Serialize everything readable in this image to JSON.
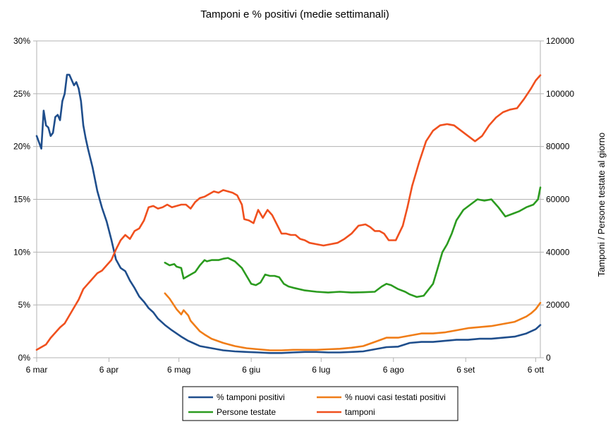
{
  "chart_data": {
    "type": "line",
    "title": "Tamponi e % positivi (medie settimanali)",
    "xlabel": "",
    "ylabel_left": "",
    "ylabel_right": "Tamponi / Persone testate al giorno",
    "x_ticks": [
      "6 mar",
      "6 apr",
      "6 mag",
      "6 giu",
      "6 lug",
      "6 ago",
      "6 set",
      "6 ott"
    ],
    "x_range_days": [
      0,
      216
    ],
    "y_left": {
      "range": [
        0,
        30
      ],
      "ticks": [
        "0%",
        "5%",
        "10%",
        "15%",
        "20%",
        "25%",
        "30%"
      ]
    },
    "y_right": {
      "range": [
        0,
        120000
      ],
      "ticks": [
        "0",
        "20000",
        "40000",
        "60000",
        "80000",
        "100000",
        "120000"
      ]
    },
    "grid": true,
    "legend": "bottom",
    "series": [
      {
        "name": "% tamponi positivi",
        "axis": "left",
        "color": "#1f4e8c",
        "x": [
          0,
          2,
          3,
          4,
          5,
          6,
          7,
          8,
          9,
          10,
          11,
          12,
          13,
          14,
          15,
          16,
          17,
          18,
          19,
          20,
          21,
          22,
          24,
          26,
          28,
          30,
          32,
          34,
          36,
          38,
          40,
          42,
          44,
          46,
          48,
          50,
          52,
          55,
          58,
          60,
          62,
          65,
          68,
          70,
          75,
          80,
          85,
          90,
          95,
          100,
          105,
          110,
          115,
          120,
          125,
          130,
          135,
          140,
          145,
          150,
          155,
          160,
          165,
          170,
          175,
          180,
          185,
          190,
          195,
          200,
          205,
          210,
          214,
          216
        ],
        "y": [
          21.0,
          19.8,
          23.4,
          22.0,
          21.8,
          21.0,
          21.3,
          22.8,
          23.0,
          22.5,
          24.3,
          25.0,
          26.8,
          26.8,
          26.3,
          25.8,
          26.1,
          25.5,
          24.3,
          22.0,
          20.8,
          19.8,
          18.0,
          15.8,
          14.2,
          12.9,
          11.2,
          9.3,
          8.5,
          8.2,
          7.3,
          6.6,
          5.8,
          5.3,
          4.7,
          4.3,
          3.7,
          3.1,
          2.6,
          2.3,
          2.0,
          1.6,
          1.3,
          1.1,
          0.9,
          0.7,
          0.6,
          0.55,
          0.5,
          0.45,
          0.45,
          0.5,
          0.55,
          0.55,
          0.5,
          0.5,
          0.55,
          0.6,
          0.8,
          1.0,
          1.05,
          1.4,
          1.5,
          1.5,
          1.6,
          1.7,
          1.7,
          1.8,
          1.8,
          1.9,
          2.0,
          2.3,
          2.7,
          3.1
        ]
      },
      {
        "name": "% nuovi casi testati positivi",
        "axis": "left",
        "color": "#f07d18",
        "x": [
          55,
          57,
          60,
          62,
          63,
          65,
          66,
          68,
          70,
          72,
          75,
          80,
          85,
          90,
          95,
          100,
          105,
          110,
          115,
          120,
          125,
          130,
          135,
          140,
          145,
          150,
          155,
          160,
          165,
          170,
          175,
          180,
          185,
          190,
          195,
          200,
          205,
          210,
          212,
          214,
          216
        ],
        "y": [
          6.1,
          5.6,
          4.6,
          4.1,
          4.5,
          4.0,
          3.5,
          3.0,
          2.5,
          2.2,
          1.8,
          1.4,
          1.1,
          0.9,
          0.8,
          0.7,
          0.7,
          0.75,
          0.75,
          0.75,
          0.8,
          0.85,
          0.95,
          1.1,
          1.5,
          1.9,
          1.9,
          2.1,
          2.3,
          2.3,
          2.4,
          2.6,
          2.8,
          2.9,
          3.0,
          3.2,
          3.4,
          3.9,
          4.2,
          4.6,
          5.2
        ]
      },
      {
        "name": "Persone testate",
        "axis": "right",
        "color": "#2b9b1f",
        "x": [
          55,
          57,
          59,
          60,
          62,
          63,
          64,
          66,
          68,
          70,
          72,
          73,
          75,
          78,
          80,
          82,
          85,
          88,
          90,
          92,
          94,
          96,
          98,
          100,
          102,
          104,
          106,
          108,
          110,
          115,
          120,
          125,
          130,
          135,
          140,
          145,
          148,
          150,
          152,
          155,
          158,
          160,
          163,
          166,
          170,
          172,
          174,
          176,
          178,
          180,
          183,
          186,
          189,
          192,
          195,
          198,
          201,
          204,
          207,
          210,
          213,
          215,
          216
        ],
        "y": [
          36000,
          35000,
          35500,
          34500,
          34000,
          30000,
          30500,
          31500,
          32500,
          35000,
          37000,
          36500,
          37000,
          37000,
          37500,
          37800,
          36500,
          34000,
          31000,
          28000,
          27500,
          28500,
          31500,
          31000,
          31000,
          30500,
          28000,
          27000,
          26500,
          25500,
          25000,
          24700,
          25000,
          24700,
          24800,
          25000,
          27000,
          28000,
          27500,
          26000,
          25000,
          24000,
          23000,
          23500,
          28000,
          34000,
          40000,
          43000,
          47000,
          52000,
          56000,
          58000,
          60000,
          59500,
          60000,
          57000,
          53500,
          54500,
          55500,
          57000,
          58000,
          60000,
          64500
        ]
      },
      {
        "name": "tamponi",
        "axis": "right",
        "color": "#f0501e",
        "x": [
          0,
          2,
          4,
          6,
          8,
          10,
          12,
          14,
          16,
          18,
          20,
          22,
          24,
          26,
          28,
          30,
          32,
          34,
          36,
          38,
          40,
          42,
          44,
          46,
          48,
          50,
          52,
          54,
          56,
          58,
          60,
          62,
          64,
          66,
          68,
          70,
          72,
          74,
          76,
          78,
          80,
          82,
          84,
          86,
          88,
          89,
          91,
          93,
          95,
          97,
          99,
          101,
          103,
          105,
          107,
          109,
          111,
          113,
          115,
          117,
          120,
          123,
          126,
          129,
          132,
          135,
          138,
          141,
          143,
          145,
          147,
          149,
          151,
          154,
          157,
          159,
          161,
          164,
          167,
          170,
          173,
          176,
          179,
          182,
          185,
          188,
          191,
          194,
          197,
          200,
          203,
          206,
          209,
          212,
          214,
          216
        ],
        "y": [
          3000,
          4000,
          5000,
          7500,
          9500,
          11500,
          13000,
          16000,
          19000,
          22000,
          26000,
          28000,
          30000,
          32000,
          33000,
          35000,
          37000,
          41000,
          44500,
          46500,
          45000,
          48000,
          49000,
          52000,
          57000,
          57500,
          56500,
          57000,
          58000,
          57000,
          57500,
          58000,
          58000,
          56500,
          59000,
          60500,
          61000,
          62000,
          63000,
          62500,
          63500,
          63000,
          62500,
          61500,
          58000,
          52500,
          52000,
          51000,
          56000,
          53000,
          56000,
          54000,
          50500,
          47000,
          47000,
          46500,
          46500,
          45000,
          44500,
          43500,
          43000,
          42500,
          43000,
          43500,
          45000,
          47000,
          50000,
          50500,
          49500,
          48000,
          48000,
          47000,
          44500,
          44500,
          50000,
          57000,
          65000,
          74000,
          82000,
          86000,
          88000,
          88500,
          88000,
          86000,
          84000,
          82000,
          84000,
          88000,
          91000,
          93000,
          94000,
          94500,
          98000,
          102000,
          105000,
          107000
        ]
      }
    ]
  }
}
